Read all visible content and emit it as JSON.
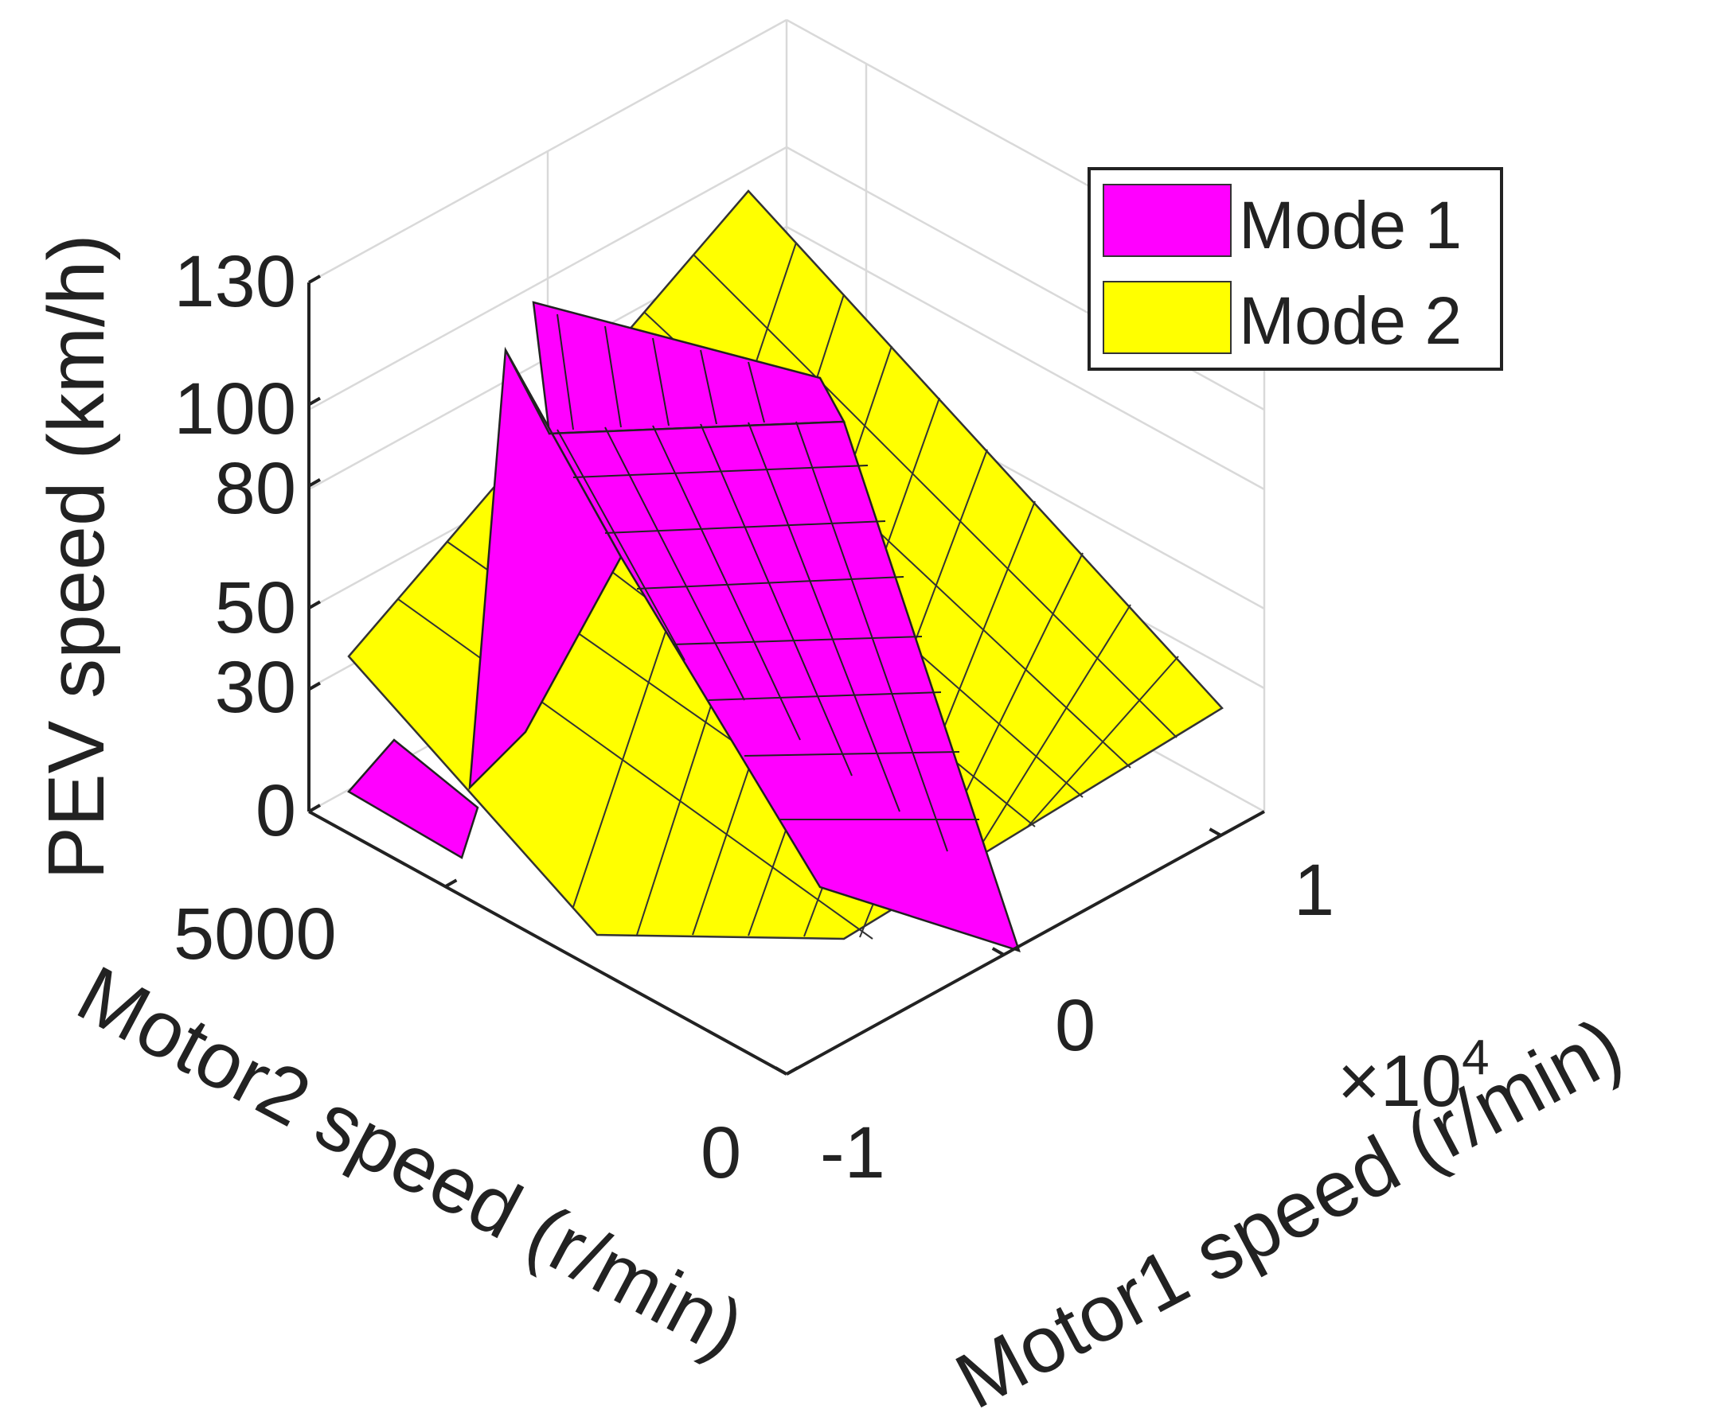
{
  "chart_data": {
    "type": "surface3d",
    "view": "isometric",
    "axes": {
      "x": {
        "label": "Motor1 speed (r/min)",
        "ticks": [
          -1,
          0,
          1
        ],
        "tick_labels": [
          "-1",
          "0",
          "1"
        ],
        "multiplier": "×10",
        "multiplier_exp": "4",
        "range": [
          -1,
          1.2
        ]
      },
      "y": {
        "label": "Motor2 speed (r/min)",
        "ticks": [
          0,
          5000
        ],
        "tick_labels": [
          "0",
          "5000"
        ],
        "range": [
          0,
          7000
        ]
      },
      "z": {
        "label": "PEV speed (km/h)",
        "ticks": [
          0,
          30,
          50,
          80,
          100,
          130
        ],
        "tick_labels": [
          "0",
          "30",
          "50",
          "80",
          "100",
          "130"
        ],
        "range": [
          0,
          130
        ]
      }
    },
    "series": [
      {
        "name": "Mode 2",
        "color": "#ffff00",
        "shape": "inclined plane"
      },
      {
        "name": "Mode 1",
        "color": "#ff00ff",
        "shape": "folded ridge"
      }
    ],
    "legend": {
      "position": "top-right",
      "entries": [
        {
          "label": "Mode 1",
          "color": "#ff00ff"
        },
        {
          "label": "Mode 2",
          "color": "#ffff00"
        }
      ]
    },
    "grid": true
  }
}
